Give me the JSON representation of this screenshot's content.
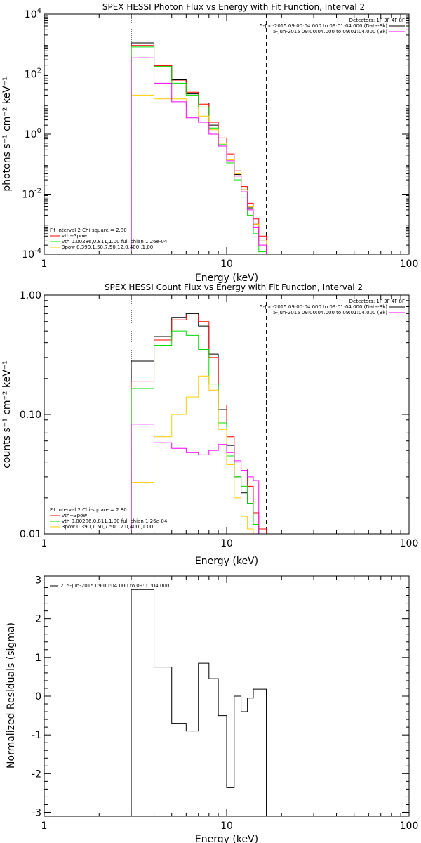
{
  "chart_data": [
    {
      "type": "line",
      "title": "SPEX HESSI Photon Flux vs Energy with Fit Function, Interval 2",
      "xlabel": "Energy (keV)",
      "ylabel": "photons s⁻¹ cm⁻² keV⁻¹",
      "xscale": "log",
      "yscale": "log",
      "xlim": [
        1,
        100
      ],
      "ylim": [
        0.0001,
        10000
      ],
      "x_ticks": [
        {
          "v": 1,
          "label": "1"
        },
        {
          "v": 10,
          "label": "10"
        },
        {
          "v": 100,
          "label": "100"
        }
      ],
      "y_ticks": [
        {
          "v": 0.0001,
          "base": "10",
          "exp": "-4"
        },
        {
          "v": 0.01,
          "base": "10",
          "exp": "-2"
        },
        {
          "v": 1,
          "base": "10",
          "exp": "0"
        },
        {
          "v": 100,
          "base": "10",
          "exp": "2"
        },
        {
          "v": 10000,
          "base": "10",
          "exp": "4"
        }
      ],
      "vlines": [
        {
          "x": 3.0,
          "style": "dotted"
        },
        {
          "x": 16.5,
          "style": "dashed"
        }
      ],
      "bin_edges": [
        3.0,
        4.0,
        5.0,
        6.0,
        7.0,
        8.0,
        9.0,
        10.0,
        11.0,
        12.0,
        13.0,
        14.0,
        15.0,
        16.5,
        18.0
      ],
      "series": [
        {
          "name": "",
          "color": "#000000",
          "values": [
            1100,
            200,
            65,
            22,
            11,
            2.0,
            0.6,
            0.14,
            0.045,
            0.014,
            0.0035,
            0.001,
            0.0003,
            0.0001
          ]
        },
        {
          "name": "",
          "color": "#ff0000",
          "values": [
            900,
            190,
            60,
            25,
            10,
            2.5,
            0.75,
            0.22,
            0.06,
            0.018,
            0.005,
            0.0015,
            0.0004,
            0.0001
          ]
        },
        {
          "name": "",
          "color": "#00dd00",
          "values": [
            800,
            180,
            50,
            20,
            8,
            1.6,
            0.45,
            0.11,
            0.03,
            0.008,
            0.002,
            0.0005,
            0.00012,
            0.0001
          ]
        },
        {
          "name": "",
          "color": "#ffcc00",
          "values": [
            20,
            15,
            15,
            8,
            4,
            1.4,
            0.5,
            0.14,
            0.05,
            0.014,
            0.004,
            0.001,
            0.0003,
            0.0001
          ]
        },
        {
          "name": "",
          "color": "#ff00ff",
          "values": [
            350,
            50,
            12,
            3.5,
            2.5,
            1.0,
            0.4,
            0.13,
            0.04,
            0.012,
            0.003,
            0.0008,
            0.0002,
            0.0001
          ]
        }
      ],
      "legend_topright": {
        "header": "Detectors: 1F 3F 4F 8F",
        "entries": [
          {
            "text": "5-Jun-2015 09:00:04.000 to 09:01:04.000 (Data-Bk)",
            "color": "#000000"
          },
          {
            "text": "5-Jun-2015 09:00:04.000 to 09:01:04.000 (Bk)",
            "color": "#ff00ff"
          }
        ]
      },
      "legend_bottomleft": {
        "header": "Fit Interval 2   Chi-square = 2.80",
        "entries": [
          {
            "text": "vth+3pow",
            "color": "#ff0000"
          },
          {
            "text": "vth 0.00286,0.811,1.00   full chian 1.26e-04",
            "color": "#00dd00"
          },
          {
            "text": "3pow 0.390,1.50,7.50,12.0,400.,1.00",
            "color": "#ffcc00"
          }
        ]
      }
    },
    {
      "type": "line",
      "title": "SPEX HESSI Count Flux vs Energy with Fit Function, Interval 2",
      "xlabel": "Energy (keV)",
      "ylabel": "counts s⁻¹ cm⁻² keV⁻¹",
      "xscale": "log",
      "yscale": "log",
      "xlim": [
        1,
        100
      ],
      "ylim": [
        0.01,
        1.0
      ],
      "x_ticks": [
        {
          "v": 1,
          "label": "1"
        },
        {
          "v": 10,
          "label": "10"
        },
        {
          "v": 100,
          "label": "100"
        }
      ],
      "y_ticks": [
        {
          "v": 0.01,
          "label": "0.01"
        },
        {
          "v": 0.1,
          "label": "0.10"
        },
        {
          "v": 1.0,
          "label": "1.00"
        }
      ],
      "vlines": [
        {
          "x": 3.0,
          "style": "dotted"
        },
        {
          "x": 16.5,
          "style": "dashed"
        }
      ],
      "bin_edges": [
        3.0,
        4.0,
        5.0,
        6.0,
        7.0,
        8.0,
        9.0,
        10.0,
        11.0,
        12.0,
        13.0,
        14.0,
        15.0,
        16.5,
        18.0
      ],
      "series": [
        {
          "name": "",
          "color": "#000000",
          "values": [
            0.28,
            0.45,
            0.65,
            0.7,
            0.55,
            0.32,
            0.11,
            0.055,
            0.03,
            0.022,
            0.018,
            0.012,
            0.01,
            0.01
          ]
        },
        {
          "name": "",
          "color": "#ff0000",
          "values": [
            0.19,
            0.42,
            0.62,
            0.68,
            0.6,
            0.3,
            0.12,
            0.065,
            0.04,
            0.035,
            0.025,
            0.015,
            0.011,
            0.01
          ]
        },
        {
          "name": "",
          "color": "#00dd00",
          "values": [
            0.165,
            0.38,
            0.5,
            0.46,
            0.35,
            0.18,
            0.085,
            0.045,
            0.03,
            0.025,
            0.018,
            0.012,
            0.01,
            0.01
          ]
        },
        {
          "name": "",
          "color": "#ffcc00",
          "values": [
            0.027,
            0.065,
            0.1,
            0.14,
            0.21,
            0.16,
            0.075,
            0.038,
            0.02,
            0.014,
            0.011,
            0.01,
            0.01,
            0.01
          ]
        },
        {
          "name": "",
          "color": "#ff00ff",
          "values": [
            0.083,
            0.058,
            0.052,
            0.048,
            0.046,
            0.05,
            0.056,
            0.048,
            0.041,
            0.034,
            0.03,
            0.028,
            0.01,
            0.01
          ]
        }
      ],
      "legend_topright": {
        "header": "Detectors: 1F 3F 4F 8F",
        "entries": [
          {
            "text": "5-Jun-2015 09:00:04.000 to 09:01:04.000 (Data-Bk)",
            "color": "#000000"
          },
          {
            "text": "5-Jun-2015 09:00:04.000 to 09:01:04.000 (Bk)",
            "color": "#ff00ff"
          }
        ]
      },
      "legend_bottomleft": {
        "header": "Fit Interval 2   Chi-square = 2.80",
        "entries": [
          {
            "text": "vth+3pow",
            "color": "#ff0000"
          },
          {
            "text": "vth 0.00286,0.811,1.00   full chian 1.26e-04",
            "color": "#00dd00"
          },
          {
            "text": "3pow 0.390,1.50,7.50,12.0,400.,1.00",
            "color": "#ffcc00"
          }
        ]
      }
    },
    {
      "type": "line",
      "title": "",
      "xlabel": "Energy (keV)",
      "ylabel": "Normalized Residuals (sigma)",
      "xscale": "log",
      "yscale": "linear",
      "xlim": [
        1,
        100
      ],
      "ylim": [
        -3.1,
        3.1
      ],
      "x_ticks": [
        {
          "v": 1,
          "label": "1"
        },
        {
          "v": 10,
          "label": "10"
        },
        {
          "v": 100,
          "label": "100"
        }
      ],
      "y_ticks": [
        {
          "v": -3,
          "label": "-3"
        },
        {
          "v": -2,
          "label": "-2"
        },
        {
          "v": -1,
          "label": "-1"
        },
        {
          "v": 0,
          "label": "0"
        },
        {
          "v": 1,
          "label": "1"
        },
        {
          "v": 2,
          "label": "2"
        },
        {
          "v": 3,
          "label": "3"
        }
      ],
      "bin_edges": [
        3.0,
        4.0,
        5.0,
        6.0,
        7.0,
        8.0,
        9.0,
        10.0,
        11.0,
        12.0,
        13.0,
        14.0,
        15.0,
        16.5
      ],
      "series": [
        {
          "name": "",
          "color": "#000000",
          "values": [
            2.75,
            0.75,
            -0.7,
            -0.9,
            0.85,
            0.45,
            -0.5,
            -2.35,
            0.0,
            -0.4,
            -0.05,
            0.18,
            0.18
          ]
        }
      ],
      "legend_topleft": {
        "entries": [
          {
            "text": "2.  5-Jun-2015 09:00:04.000 to 09:01:04.000",
            "color": "#000000"
          }
        ]
      }
    }
  ]
}
